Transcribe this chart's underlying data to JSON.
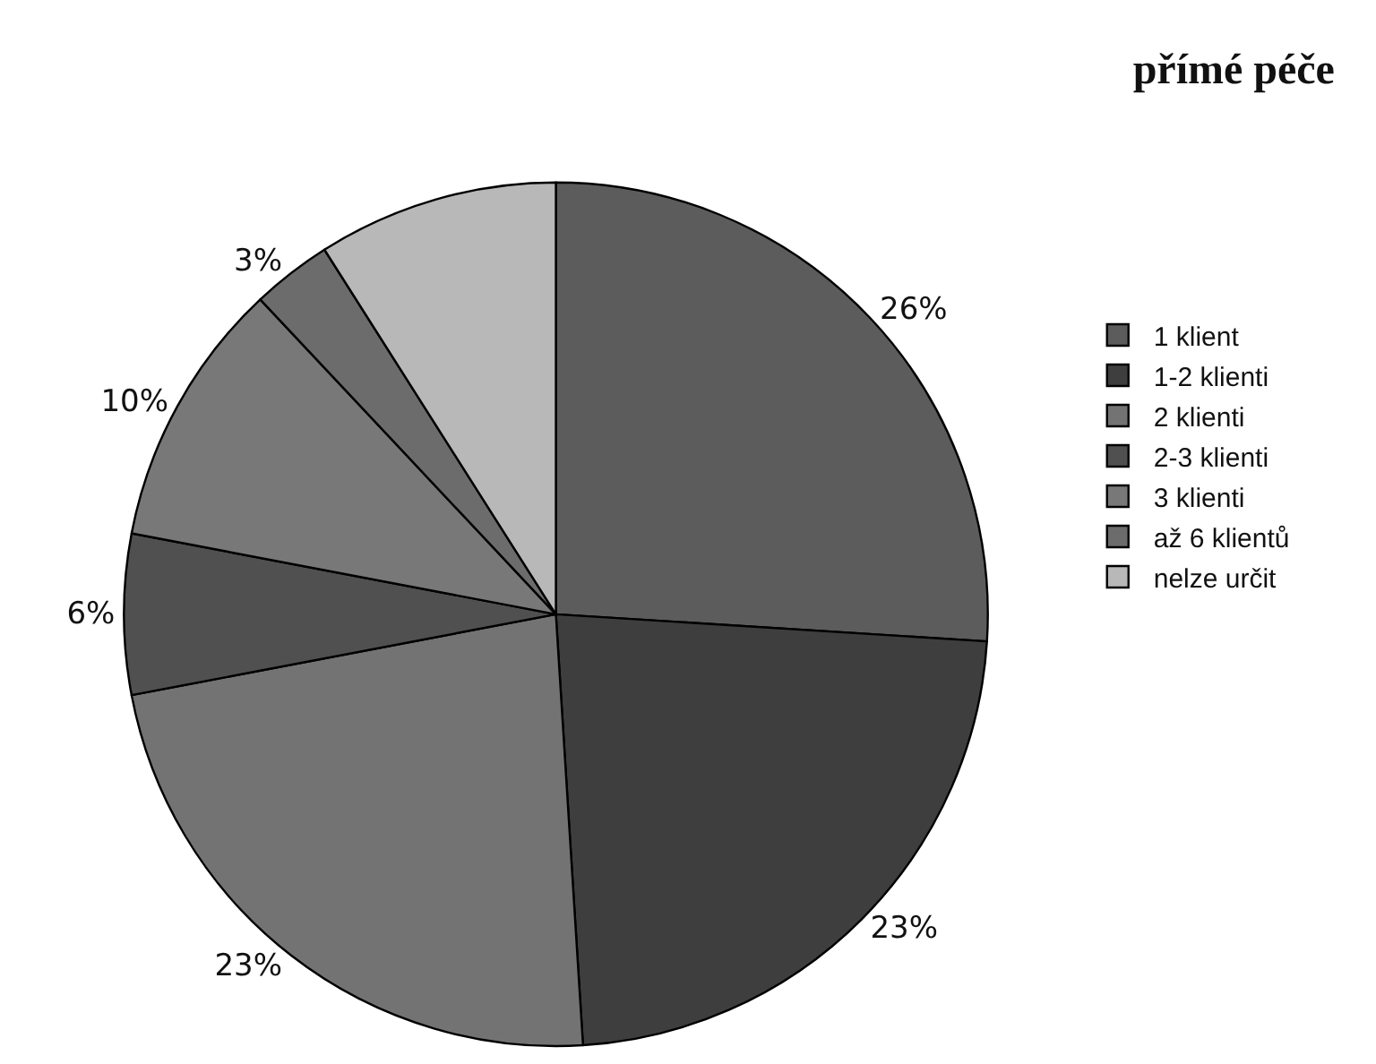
{
  "chart_data": {
    "type": "pie",
    "title": "přímé péče",
    "categories": [
      "1 klient",
      "1-2 klienti",
      "2 klienti",
      "2-3 klienti",
      "3 klienti",
      "až 6 klientů",
      "nelze určit"
    ],
    "values": [
      26,
      23,
      23,
      6,
      10,
      3,
      9
    ],
    "value_labels": [
      "26%",
      "23%",
      "23%",
      "6%",
      "10%",
      "3%",
      null
    ],
    "colors": [
      "#5c5c5c",
      "#3e3e3e",
      "#737373",
      "#505050",
      "#787878",
      "#6c6c6c",
      "#b8b8b8"
    ],
    "legend": "right"
  }
}
